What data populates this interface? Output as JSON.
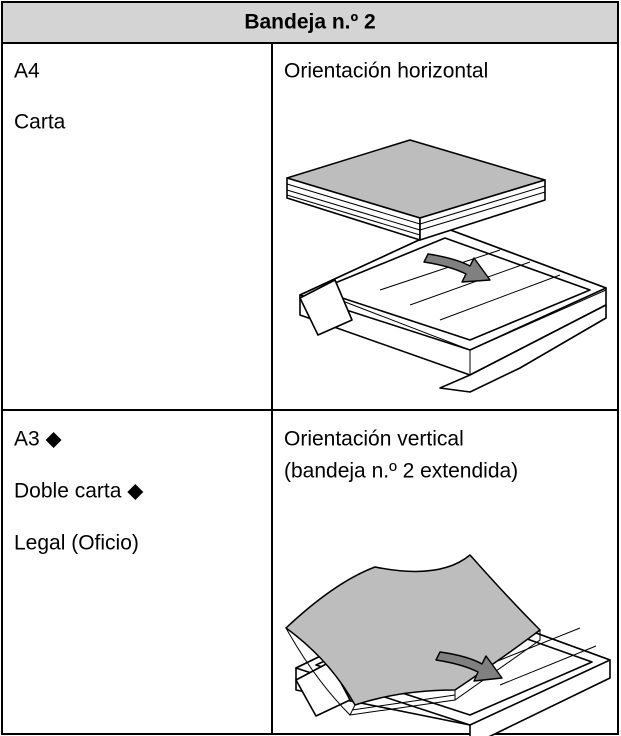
{
  "table": {
    "header": "Bandeja n.º 2",
    "rows": [
      {
        "sizes": [
          "A4",
          "Carta"
        ],
        "orientation": [
          "Orientación horizontal"
        ]
      },
      {
        "sizes": [
          "A3 ◆",
          "Doble carta ◆",
          "Legal (Oficio)"
        ],
        "orientation": [
          "Orientación vertical",
          "(bandeja n.º 2 extendida)"
        ]
      }
    ]
  }
}
